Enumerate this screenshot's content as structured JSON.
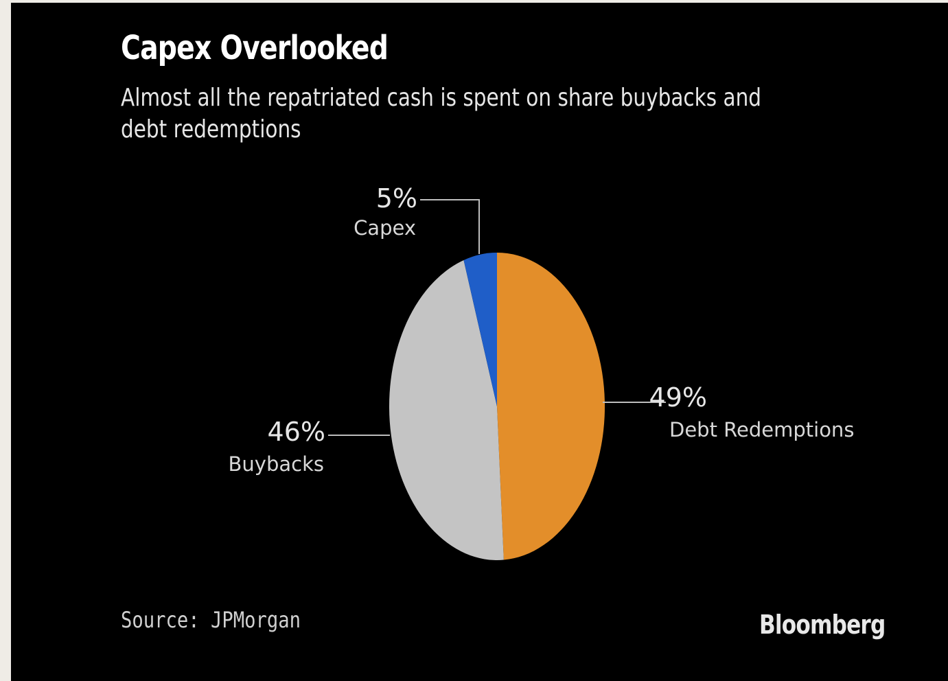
{
  "chart_data": {
    "type": "pie",
    "title": "Capex Overlooked",
    "subtitle": "Almost all the repatriated cash is spent on share buybacks and debt redemptions",
    "slices": [
      {
        "label": "Debt Redemptions",
        "value": 49,
        "value_label": "49%",
        "color": "#e38e2a"
      },
      {
        "label": "Buybacks",
        "value": 46,
        "value_label": "46%",
        "color": "#c4c4c4"
      },
      {
        "label": "Capex",
        "value": 5,
        "value_label": "5%",
        "color": "#1f5ec8"
      }
    ],
    "start_angle_deg": 0,
    "direction": "clockwise",
    "source": "Source: JPMorgan",
    "branding": "Bloomberg"
  },
  "colors": {
    "background": "#000000",
    "page_margin": "#efece6",
    "leader_line": "#bdbdbd"
  }
}
